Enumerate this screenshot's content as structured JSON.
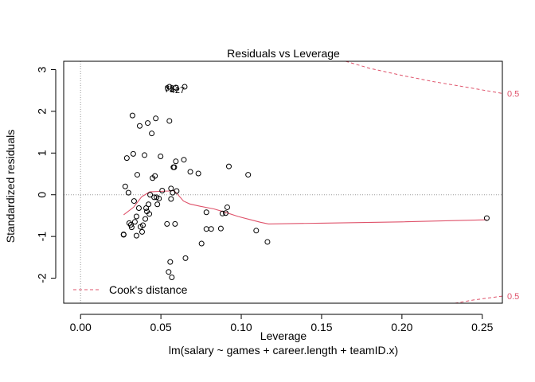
{
  "chart_data": {
    "type": "scatter",
    "title": "Residuals vs Leverage",
    "xlabel": "Leverage",
    "subtitle": "lm(salary ~ games + career.length + teamID.x)",
    "ylabel": "Standardized residuals",
    "xlim": [
      -0.0105,
      0.2625
    ],
    "ylim": [
      -2.6,
      3.2
    ],
    "xticks": [
      0.0,
      0.05,
      0.1,
      0.15,
      0.2,
      0.25
    ],
    "xtick_labels": [
      "0.00",
      "0.05",
      "0.10",
      "0.15",
      "0.20",
      "0.25"
    ],
    "yticks": [
      -2,
      -1,
      0,
      1,
      2,
      3
    ],
    "ytick_labels": [
      "-2",
      "-1",
      "0",
      "1",
      "2",
      "3"
    ],
    "grid": false,
    "reference_lines": {
      "x": 0,
      "y": 0,
      "style": "dotted"
    },
    "legend": {
      "position": "bottom-left",
      "label": "Cook's distance"
    },
    "points": [
      {
        "x": 0.0268,
        "y": -0.96
      },
      {
        "x": 0.0268,
        "y": -0.95
      },
      {
        "x": 0.0278,
        "y": 0.2
      },
      {
        "x": 0.0288,
        "y": 0.88
      },
      {
        "x": 0.0298,
        "y": 0.05
      },
      {
        "x": 0.0303,
        "y": -0.68
      },
      {
        "x": 0.0313,
        "y": -0.72
      },
      {
        "x": 0.0318,
        "y": -0.78
      },
      {
        "x": 0.0323,
        "y": 1.9
      },
      {
        "x": 0.0328,
        "y": 0.98
      },
      {
        "x": 0.0333,
        "y": -0.15
      },
      {
        "x": 0.0338,
        "y": -0.65
      },
      {
        "x": 0.0348,
        "y": -0.52
      },
      {
        "x": 0.0348,
        "y": -0.98
      },
      {
        "x": 0.0353,
        "y": 0.48
      },
      {
        "x": 0.0363,
        "y": -0.32
      },
      {
        "x": 0.0368,
        "y": 1.65
      },
      {
        "x": 0.0373,
        "y": -0.77
      },
      {
        "x": 0.0383,
        "y": -0.89
      },
      {
        "x": 0.0388,
        "y": -0.73
      },
      {
        "x": 0.0398,
        "y": 0.95
      },
      {
        "x": 0.0403,
        "y": -0.58
      },
      {
        "x": 0.0408,
        "y": -0.32
      },
      {
        "x": 0.0413,
        "y": -0.4
      },
      {
        "x": 0.0418,
        "y": 1.72
      },
      {
        "x": 0.0423,
        "y": -0.23
      },
      {
        "x": 0.0428,
        "y": -0.46
      },
      {
        "x": 0.0433,
        "y": 0.0
      },
      {
        "x": 0.0443,
        "y": 1.47
      },
      {
        "x": 0.0448,
        "y": 0.4
      },
      {
        "x": 0.0458,
        "y": -0.06
      },
      {
        "x": 0.0463,
        "y": 0.45
      },
      {
        "x": 0.0468,
        "y": 1.83
      },
      {
        "x": 0.0473,
        "y": -0.06
      },
      {
        "x": 0.0478,
        "y": -0.23
      },
      {
        "x": 0.0488,
        "y": -0.09
      },
      {
        "x": 0.0498,
        "y": 0.92
      },
      {
        "x": 0.0508,
        "y": 0.1
      },
      {
        "x": 0.0538,
        "y": -0.7
      },
      {
        "x": 0.0548,
        "y": -1.85
      },
      {
        "x": 0.0553,
        "y": 1.77
      },
      {
        "x": 0.0558,
        "y": -1.61
      },
      {
        "x": 0.0563,
        "y": -0.1
      },
      {
        "x": 0.0563,
        "y": 0.15
      },
      {
        "x": 0.0568,
        "y": -1.98
      },
      {
        "x": 0.0573,
        "y": 0.05
      },
      {
        "x": 0.0578,
        "y": 0.66
      },
      {
        "x": 0.0583,
        "y": 0.66
      },
      {
        "x": 0.0588,
        "y": -0.7
      },
      {
        "x": 0.0593,
        "y": 0.8
      },
      {
        "x": 0.0598,
        "y": 0.09
      },
      {
        "x": 0.0643,
        "y": 0.84
      },
      {
        "x": 0.0653,
        "y": -1.52
      },
      {
        "x": 0.0683,
        "y": 0.55
      },
      {
        "x": 0.0733,
        "y": 0.51
      },
      {
        "x": 0.0753,
        "y": -1.17
      },
      {
        "x": 0.0783,
        "y": -0.42
      },
      {
        "x": 0.0783,
        "y": -0.82
      },
      {
        "x": 0.0813,
        "y": -0.82
      },
      {
        "x": 0.0873,
        "y": -0.81
      },
      {
        "x": 0.0883,
        "y": -0.45
      },
      {
        "x": 0.0903,
        "y": -0.44
      },
      {
        "x": 0.0913,
        "y": -0.3
      },
      {
        "x": 0.0923,
        "y": 0.68
      },
      {
        "x": 0.1043,
        "y": 0.48
      },
      {
        "x": 0.1093,
        "y": -0.86
      },
      {
        "x": 0.1163,
        "y": -1.13
      },
      {
        "x": 0.2528,
        "y": -0.56
      },
      {
        "x": 0.0553,
        "y": 2.59
      },
      {
        "x": 0.0593,
        "y": 2.57
      },
      {
        "x": 0.0648,
        "y": 2.59
      }
    ],
    "labeled_points": [
      {
        "x": 0.0553,
        "y": 2.59,
        "label": "73"
      },
      {
        "x": 0.0603,
        "y": 2.57,
        "label": "427"
      },
      {
        "x": 0.0568,
        "y": 2.62,
        "label": "683"
      }
    ],
    "series": [
      {
        "type": "line",
        "color": "#DF536B",
        "x": [
          0.0268,
          0.033,
          0.038,
          0.043,
          0.049,
          0.055,
          0.058,
          0.06,
          0.064,
          0.068,
          0.075,
          0.083,
          0.09,
          0.098,
          0.106,
          0.112,
          0.117,
          0.15,
          0.2,
          0.2528
        ],
        "y": [
          -0.48,
          -0.3,
          -0.05,
          0.07,
          0.08,
          0.09,
          0.1,
          0.03,
          -0.15,
          -0.22,
          -0.28,
          -0.34,
          -0.42,
          -0.52,
          -0.6,
          -0.66,
          -0.7,
          -0.68,
          -0.65,
          -0.6
        ]
      }
    ],
    "cooks_contours": [
      {
        "level": 0.5,
        "side": "upper",
        "color": "#DF536B",
        "dashed": true,
        "x": [
          0.165,
          0.18,
          0.2,
          0.22,
          0.24,
          0.2625
        ],
        "y": [
          3.2,
          3.03,
          2.86,
          2.71,
          2.58,
          2.43
        ]
      },
      {
        "level": 0.5,
        "side": "lower",
        "color": "#DF536B",
        "dashed": true,
        "x": [
          0.233,
          0.245,
          0.2625
        ],
        "y": [
          -2.6,
          -2.52,
          -2.43
        ]
      }
    ],
    "contour_labels": [
      {
        "level_text": "0.5",
        "y": 2.43
      },
      {
        "level_text": "0.5",
        "y": -2.43
      }
    ]
  }
}
